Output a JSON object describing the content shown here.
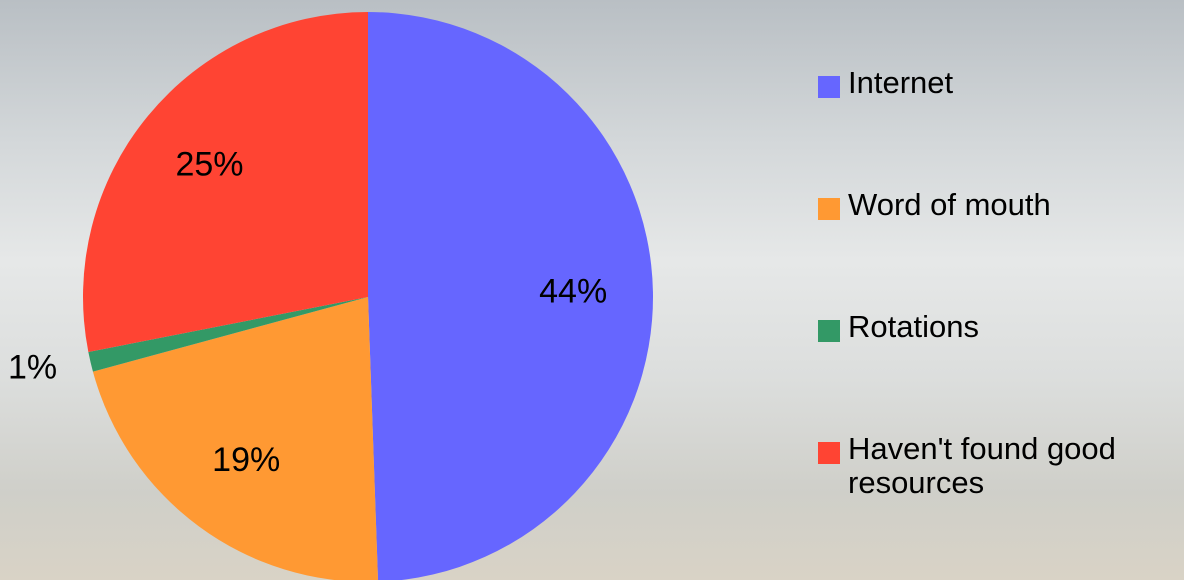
{
  "chart_data": {
    "type": "pie",
    "categories": [
      "Internet",
      "Word of mouth",
      "Rotations",
      "Haven't found good resources"
    ],
    "values": [
      44,
      19,
      1,
      25
    ],
    "value_labels": [
      "44%",
      "19%",
      "1%",
      "25%"
    ],
    "colors": [
      "#6666ff",
      "#ff9933",
      "#339966",
      "#ff4433"
    ],
    "legend": "right"
  }
}
